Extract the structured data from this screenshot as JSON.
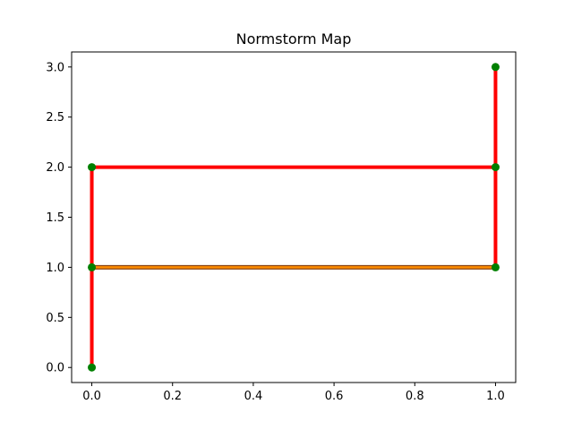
{
  "chart_data": {
    "type": "line",
    "title": "Normstorm Map",
    "xlabel": "",
    "ylabel": "",
    "xlim": [
      -0.05,
      1.05
    ],
    "ylim": [
      -0.15,
      3.15
    ],
    "grid": false,
    "x_ticks": [
      0.0,
      0.2,
      0.4,
      0.6,
      0.8,
      1.0
    ],
    "x_tick_labels": [
      "0.0",
      "0.2",
      "0.4",
      "0.6",
      "0.8",
      "1.0"
    ],
    "y_ticks": [
      0.0,
      0.5,
      1.0,
      1.5,
      2.0,
      2.5,
      3.0
    ],
    "y_tick_labels": [
      "0.0",
      "0.5",
      "1.0",
      "1.5",
      "2.0",
      "2.5",
      "3.0"
    ],
    "nodes": [
      {
        "x": 0,
        "y": 0
      },
      {
        "x": 0,
        "y": 1
      },
      {
        "x": 0,
        "y": 2
      },
      {
        "x": 1,
        "y": 1
      },
      {
        "x": 1,
        "y": 2
      },
      {
        "x": 1,
        "y": 3
      }
    ],
    "segments": [
      {
        "x": [
          0,
          0
        ],
        "y": [
          0,
          1
        ],
        "color": "#ff0000",
        "style": "thick"
      },
      {
        "x": [
          0,
          0
        ],
        "y": [
          1,
          2
        ],
        "color": "#ff0000",
        "style": "thick"
      },
      {
        "x": [
          0,
          1
        ],
        "y": [
          2,
          2
        ],
        "color": "#ff0000",
        "style": "thick"
      },
      {
        "x": [
          1,
          1
        ],
        "y": [
          2,
          3
        ],
        "color": "#ff0000",
        "style": "thick"
      },
      {
        "x": [
          1,
          1
        ],
        "y": [
          1,
          2
        ],
        "color": "#ff0000",
        "style": "thick"
      },
      {
        "x": [
          0,
          1
        ],
        "y": [
          1,
          1
        ],
        "color": "#ff8c00",
        "style": "outlined"
      }
    ],
    "node_color": "#008000",
    "outline_color": "#8b4513"
  }
}
